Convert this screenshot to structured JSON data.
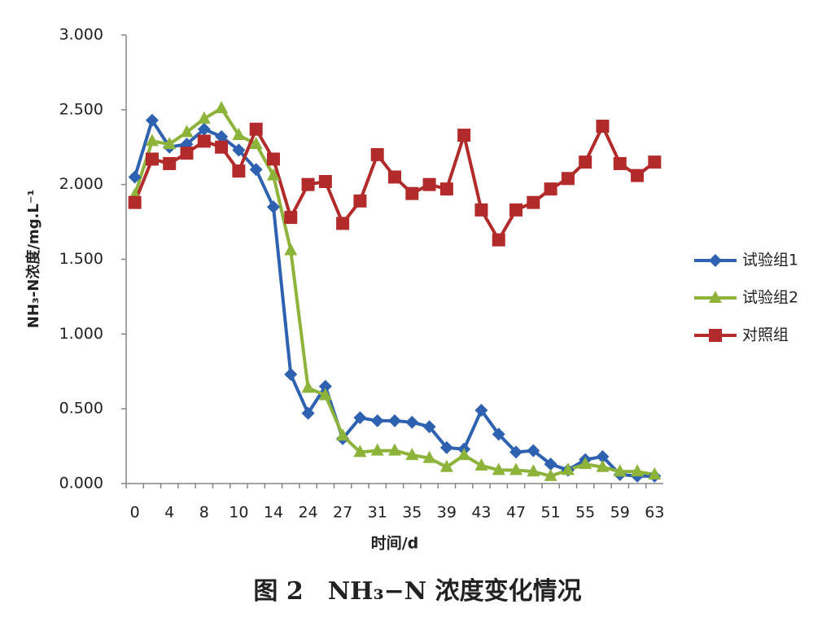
{
  "chart_data": {
    "type": "line",
    "y_label": "NH₃-N浓度/mg.L⁻¹",
    "x_label": "时间/d",
    "caption": "图 2　NH₃−N 浓度变化情况",
    "categories": [
      "0",
      null,
      "4",
      null,
      "8",
      null,
      "10",
      null,
      "14",
      null,
      "24",
      null,
      "27",
      null,
      "31",
      null,
      "35",
      null,
      "39",
      null,
      "43",
      null,
      "47",
      null,
      "51",
      null,
      "55",
      null,
      "59",
      null,
      "63"
    ],
    "series": [
      {
        "name": "试验组1",
        "color": "#2e62b0",
        "marker": "diamond",
        "values": [
          2.05,
          2.43,
          2.25,
          2.27,
          2.37,
          2.32,
          2.23,
          2.1,
          1.85,
          0.73,
          0.47,
          0.65,
          0.3,
          0.44,
          0.42,
          0.42,
          0.41,
          0.38,
          0.24,
          0.23,
          0.49,
          0.33,
          0.21,
          0.22,
          0.13,
          0.09,
          0.16,
          0.18,
          0.06,
          0.05,
          0.05
        ]
      },
      {
        "name": "试验组2",
        "color": "#8db33a",
        "marker": "triangle",
        "values": [
          1.93,
          2.29,
          2.27,
          2.35,
          2.44,
          2.51,
          2.33,
          2.27,
          2.06,
          1.56,
          0.64,
          0.59,
          0.32,
          0.21,
          0.22,
          0.22,
          0.19,
          0.17,
          0.11,
          0.19,
          0.12,
          0.09,
          0.09,
          0.08,
          0.05,
          0.09,
          0.13,
          0.11,
          0.08,
          0.08,
          0.06
        ]
      },
      {
        "name": "对照组",
        "color": "#b22a2a",
        "marker": "square",
        "values": [
          1.88,
          2.17,
          2.14,
          2.21,
          2.29,
          2.25,
          2.09,
          2.37,
          2.17,
          1.78,
          2.0,
          2.02,
          1.74,
          1.89,
          2.2,
          2.05,
          1.94,
          2.0,
          1.97,
          2.33,
          1.83,
          1.63,
          1.83,
          1.88,
          1.97,
          2.04,
          2.15,
          2.39,
          2.14,
          2.06,
          2.15
        ]
      }
    ],
    "ylim": [
      0,
      3
    ],
    "yticks": [
      {
        "value": 0,
        "label": "0.000"
      },
      {
        "value": 0.5,
        "label": "0.500"
      },
      {
        "value": 1,
        "label": "1.000"
      },
      {
        "value": 1.5,
        "label": "1.500"
      },
      {
        "value": 2,
        "label": "2.000"
      },
      {
        "value": 2.5,
        "label": "2.500"
      },
      {
        "value": 3,
        "label": "3.000"
      }
    ],
    "legend": "right",
    "grid": false
  }
}
